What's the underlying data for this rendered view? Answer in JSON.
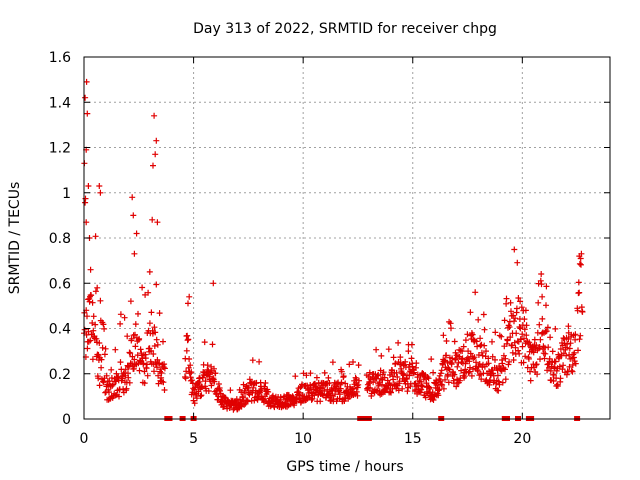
{
  "chart_data": {
    "type": "scatter",
    "title": "Day 313 of 2022, SRMTID for receiver chpg",
    "xlabel": "GPS time / hours",
    "ylabel": "SRMTID / TECUs",
    "xlim": [
      0,
      24
    ],
    "ylim": [
      0,
      1.6
    ],
    "xticks": [
      0,
      5,
      10,
      15,
      20
    ],
    "yticks": [
      0,
      0.2,
      0.4,
      0.6,
      0.8,
      1.0,
      1.2,
      1.4,
      1.6
    ],
    "xtick_labels": [
      "0",
      "5",
      "10",
      "15",
      "20"
    ],
    "ytick_labels": [
      "0",
      "0.2",
      "0.4",
      "0.6",
      "0.8",
      "1",
      "1.2",
      "1.4",
      "1.6"
    ],
    "grid": true,
    "marker": "+",
    "series_color": "#e00000",
    "profile": [
      {
        "x": 0.0,
        "y": 0.35
      },
      {
        "x": 0.3,
        "y": 0.45
      },
      {
        "x": 0.6,
        "y": 0.25
      },
      {
        "x": 1.0,
        "y": 0.12
      },
      {
        "x": 1.5,
        "y": 0.14
      },
      {
        "x": 2.0,
        "y": 0.2
      },
      {
        "x": 2.3,
        "y": 0.35
      },
      {
        "x": 2.7,
        "y": 0.2
      },
      {
        "x": 3.1,
        "y": 0.35
      },
      {
        "x": 3.5,
        "y": 0.18
      },
      {
        "x": 4.7,
        "y": 0.28
      },
      {
        "x": 5.0,
        "y": 0.1
      },
      {
        "x": 5.3,
        "y": 0.14
      },
      {
        "x": 5.8,
        "y": 0.2
      },
      {
        "x": 6.3,
        "y": 0.08
      },
      {
        "x": 7.0,
        "y": 0.05
      },
      {
        "x": 7.5,
        "y": 0.12
      },
      {
        "x": 8.0,
        "y": 0.13
      },
      {
        "x": 8.5,
        "y": 0.08
      },
      {
        "x": 9.5,
        "y": 0.08
      },
      {
        "x": 10.0,
        "y": 0.12
      },
      {
        "x": 11.0,
        "y": 0.12
      },
      {
        "x": 12.0,
        "y": 0.12
      },
      {
        "x": 12.7,
        "y": 0.15
      },
      {
        "x": 13.5,
        "y": 0.15
      },
      {
        "x": 14.5,
        "y": 0.2
      },
      {
        "x": 15.5,
        "y": 0.15
      },
      {
        "x": 16.0,
        "y": 0.12
      },
      {
        "x": 16.5,
        "y": 0.22
      },
      {
        "x": 17.0,
        "y": 0.22
      },
      {
        "x": 17.5,
        "y": 0.28
      },
      {
        "x": 18.0,
        "y": 0.28
      },
      {
        "x": 18.5,
        "y": 0.22
      },
      {
        "x": 19.0,
        "y": 0.18
      },
      {
        "x": 19.5,
        "y": 0.36
      },
      {
        "x": 20.0,
        "y": 0.38
      },
      {
        "x": 20.4,
        "y": 0.25
      },
      {
        "x": 21.0,
        "y": 0.35
      },
      {
        "x": 21.5,
        "y": 0.2
      },
      {
        "x": 22.0,
        "y": 0.28
      },
      {
        "x": 22.4,
        "y": 0.32
      },
      {
        "x": 22.7,
        "y": 0.6
      }
    ],
    "peaks": [
      {
        "x": 0.05,
        "y": 1.42
      },
      {
        "x": 0.12,
        "y": 1.49
      },
      {
        "x": 0.15,
        "y": 1.35
      },
      {
        "x": 0.1,
        "y": 1.19
      },
      {
        "x": 0.02,
        "y": 1.13
      },
      {
        "x": 0.2,
        "y": 1.03
      },
      {
        "x": 0.1,
        "y": 0.87
      },
      {
        "x": 0.25,
        "y": 0.8
      },
      {
        "x": 0.3,
        "y": 0.66
      },
      {
        "x": 0.7,
        "y": 1.03
      },
      {
        "x": 0.75,
        "y": 1.0
      },
      {
        "x": 0.6,
        "y": 0.58
      },
      {
        "x": 2.2,
        "y": 0.98
      },
      {
        "x": 2.25,
        "y": 0.9
      },
      {
        "x": 2.4,
        "y": 0.82
      },
      {
        "x": 2.3,
        "y": 0.73
      },
      {
        "x": 3.2,
        "y": 1.34
      },
      {
        "x": 3.3,
        "y": 1.23
      },
      {
        "x": 3.25,
        "y": 1.17
      },
      {
        "x": 3.15,
        "y": 1.12
      },
      {
        "x": 3.35,
        "y": 0.87
      },
      {
        "x": 3.0,
        "y": 0.65
      },
      {
        "x": 4.8,
        "y": 0.54
      },
      {
        "x": 5.9,
        "y": 0.6
      },
      {
        "x": 7.7,
        "y": 0.26
      },
      {
        "x": 14.8,
        "y": 0.3
      },
      {
        "x": 16.4,
        "y": 0.37
      },
      {
        "x": 17.7,
        "y": 0.38
      },
      {
        "x": 19.9,
        "y": 0.52
      },
      {
        "x": 20.9,
        "y": 0.54
      },
      {
        "x": 22.1,
        "y": 0.41
      },
      {
        "x": 22.6,
        "y": 0.72
      }
    ],
    "zero_marks": [
      3.8,
      3.9,
      4.5,
      5.0,
      12.6,
      12.7,
      12.8,
      13.0,
      16.3,
      19.2,
      19.3,
      19.8,
      20.3,
      20.4,
      22.5
    ]
  }
}
